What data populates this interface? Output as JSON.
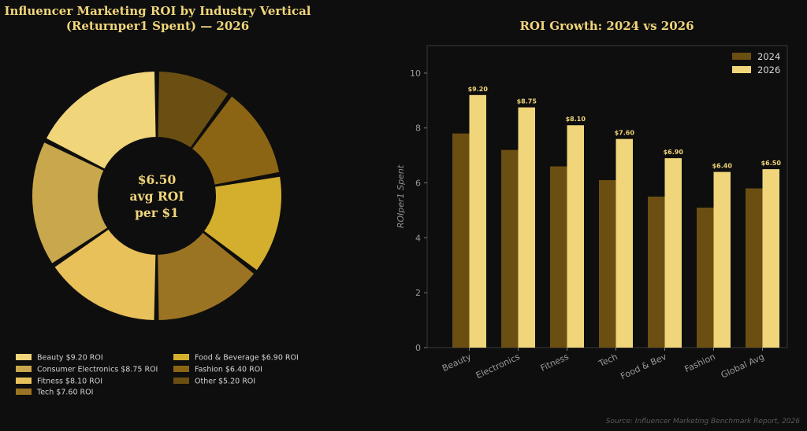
{
  "colors": {
    "background": "#0e0e0e",
    "title": "#f0d57a",
    "series_2024": "#6b4f12",
    "series_2026": "#f0d57a",
    "donut": [
      "#f0d57a",
      "#c9a74c",
      "#e8c15a",
      "#9b7423",
      "#d4af2e",
      "#8b6514",
      "#6b4f12"
    ]
  },
  "source": "Source: Influencer Marketing Benchmark Report, 2026",
  "chart_data": [
    {
      "type": "pie",
      "title_line1": "Influencer Marketing ROI by Industry Vertical",
      "title_line2": "(Returnper1 Spent) — 2026",
      "center_text": [
        "$6.50",
        "avg ROI",
        "per $1"
      ],
      "categories": [
        "Beauty",
        "Consumer Electronics",
        "Fitness",
        "Tech",
        "Food & Beverage",
        "Fashion",
        "Other"
      ],
      "values": [
        9.2,
        8.75,
        8.1,
        7.6,
        6.9,
        6.4,
        5.2
      ],
      "legend": [
        "Beauty $9.20 ROI",
        "Consumer Electronics $8.75 ROI",
        "Fitness $8.10 ROI",
        "Tech $7.60 ROI",
        "Food & Beverage $6.90 ROI",
        "Fashion $6.40 ROI",
        "Other $5.20 ROI"
      ],
      "legend_placement": "bottom"
    },
    {
      "type": "bar",
      "title": "ROI Growth: 2024 vs 2026",
      "ylabel": "ROIper1 Spent",
      "xlabel": "",
      "ylim": [
        0,
        11
      ],
      "yticks": [
        0,
        2,
        4,
        6,
        8,
        10
      ],
      "categories": [
        "Beauty",
        "Electronics",
        "Fitness",
        "Tech",
        "Food & Bev",
        "Fashion",
        "Global Avg"
      ],
      "series": [
        {
          "name": "2024",
          "values": [
            7.8,
            7.2,
            6.6,
            6.1,
            5.5,
            5.1,
            5.8
          ]
        },
        {
          "name": "2026",
          "values": [
            9.2,
            8.75,
            8.1,
            7.6,
            6.9,
            6.4,
            6.5
          ]
        }
      ],
      "data_labels": [
        "$9.20",
        "$8.75",
        "$8.10",
        "$7.60",
        "$6.90",
        "$6.40",
        "$6.50"
      ],
      "legend_placement": "top-right",
      "grid": false
    }
  ]
}
